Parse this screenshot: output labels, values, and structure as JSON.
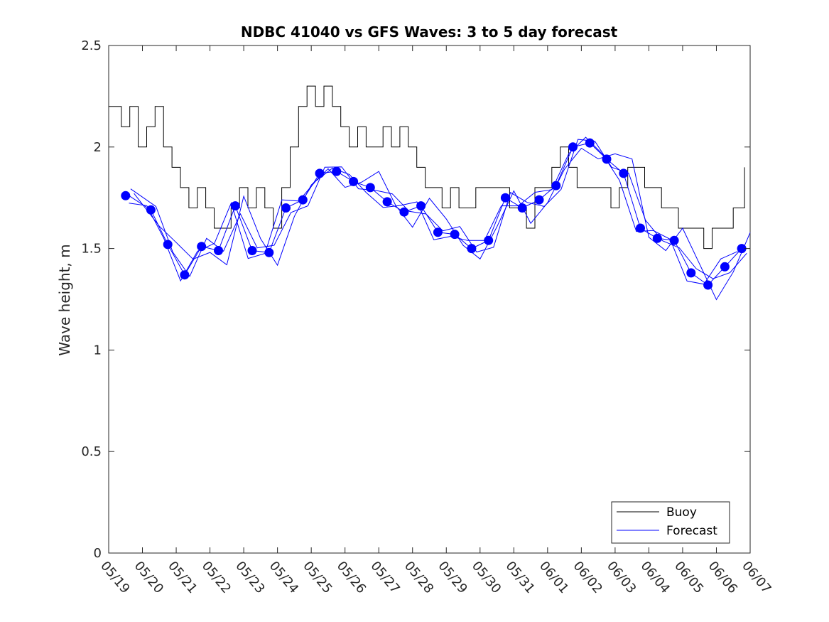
{
  "chart_data": {
    "type": "line",
    "title": "NDBC 41040 vs GFS Waves: 3 to 5 day forecast",
    "xlabel": "",
    "ylabel": "Wave height, m",
    "ylim": [
      0,
      2.5
    ],
    "yticks": [
      "0",
      "0.5",
      "1",
      "1.5",
      "2",
      "2.5"
    ],
    "xlim_days": [
      0,
      19
    ],
    "xticks": [
      "05/19",
      "05/20",
      "05/21",
      "05/22",
      "05/23",
      "05/24",
      "05/25",
      "05/26",
      "05/27",
      "05/28",
      "05/29",
      "05/30",
      "05/31",
      "06/01",
      "06/02",
      "06/03",
      "06/04",
      "06/05",
      "06/06",
      "06/07"
    ],
    "grid": false,
    "legend": {
      "position": "bottom-right",
      "entries": [
        "Buoy",
        "Forecast"
      ]
    },
    "colors": {
      "buoy": "#000000",
      "forecast": "#0000ff"
    },
    "series": [
      {
        "name": "Buoy",
        "points": [
          [
            "05/19",
            2.2
          ],
          [
            "05/19",
            2.1
          ],
          [
            "05/19",
            2.2
          ],
          [
            "05/19",
            2.0
          ],
          [
            "05/20",
            2.1
          ],
          [
            "05/20",
            2.2
          ],
          [
            "05/20",
            2.0
          ],
          [
            "05/20",
            1.9
          ],
          [
            "05/21",
            1.8
          ],
          [
            "05/21",
            1.7
          ],
          [
            "05/21",
            1.8
          ],
          [
            "05/21",
            1.7
          ],
          [
            "05/22",
            1.6
          ],
          [
            "05/22",
            1.6
          ],
          [
            "05/22",
            1.7
          ],
          [
            "05/22",
            1.8
          ],
          [
            "05/23",
            1.7
          ],
          [
            "05/23",
            1.8
          ],
          [
            "05/23",
            1.7
          ],
          [
            "05/23",
            1.6
          ],
          [
            "05/24",
            1.8
          ],
          [
            "05/24",
            2.0
          ],
          [
            "05/24",
            2.2
          ],
          [
            "05/24",
            2.3
          ],
          [
            "05/25",
            2.2
          ],
          [
            "05/25",
            2.3
          ],
          [
            "05/25",
            2.2
          ],
          [
            "05/25",
            2.1
          ],
          [
            "05/26",
            2.0
          ],
          [
            "05/26",
            2.1
          ],
          [
            "05/26",
            2.0
          ],
          [
            "05/26",
            2.0
          ],
          [
            "05/27",
            2.1
          ],
          [
            "05/27",
            2.0
          ],
          [
            "05/27",
            2.1
          ],
          [
            "05/27",
            2.0
          ],
          [
            "05/28",
            1.9
          ],
          [
            "05/28",
            1.8
          ],
          [
            "05/28",
            1.8
          ],
          [
            "05/28",
            1.7
          ],
          [
            "05/29",
            1.8
          ],
          [
            "05/29",
            1.7
          ],
          [
            "05/29",
            1.7
          ],
          [
            "05/29",
            1.8
          ],
          [
            "05/30",
            1.8
          ],
          [
            "05/30",
            1.8
          ],
          [
            "05/30",
            1.8
          ],
          [
            "05/30",
            1.7
          ],
          [
            "05/31",
            1.7
          ],
          [
            "05/31",
            1.6
          ],
          [
            "05/31",
            1.8
          ],
          [
            "05/31",
            1.8
          ],
          [
            "06/01",
            1.9
          ],
          [
            "06/01",
            2.0
          ],
          [
            "06/01",
            1.9
          ],
          [
            "06/01",
            1.8
          ],
          [
            "06/02",
            1.8
          ],
          [
            "06/02",
            1.8
          ],
          [
            "06/02",
            1.8
          ],
          [
            "06/02",
            1.7
          ],
          [
            "06/03",
            1.8
          ],
          [
            "06/03",
            1.9
          ],
          [
            "06/03",
            1.9
          ],
          [
            "06/03",
            1.8
          ],
          [
            "06/04",
            1.8
          ],
          [
            "06/04",
            1.7
          ],
          [
            "06/04",
            1.7
          ],
          [
            "06/04",
            1.6
          ],
          [
            "06/05",
            1.6
          ],
          [
            "06/05",
            1.6
          ],
          [
            "06/05",
            1.5
          ],
          [
            "06/05",
            1.6
          ],
          [
            "06/06",
            1.6
          ],
          [
            "06/06",
            1.7
          ],
          [
            "06/06",
            1.9
          ]
        ]
      },
      {
        "name": "Forecast",
        "markers": [
          [
            "05/19",
            1.76
          ],
          [
            "05/20",
            1.69
          ],
          [
            "05/20",
            1.52
          ],
          [
            "05/21",
            1.37
          ],
          [
            "05/21",
            1.51
          ],
          [
            "05/22",
            1.49
          ],
          [
            "05/22",
            1.71
          ],
          [
            "05/23",
            1.49
          ],
          [
            "05/23",
            1.48
          ],
          [
            "05/24",
            1.7
          ],
          [
            "05/24",
            1.74
          ],
          [
            "05/25",
            1.87
          ],
          [
            "05/25",
            1.88
          ],
          [
            "05/26",
            1.83
          ],
          [
            "05/26",
            1.8
          ],
          [
            "05/27",
            1.73
          ],
          [
            "05/27",
            1.68
          ],
          [
            "05/28",
            1.71
          ],
          [
            "05/28",
            1.58
          ],
          [
            "05/29",
            1.57
          ],
          [
            "05/29",
            1.5
          ],
          [
            "05/30",
            1.54
          ],
          [
            "05/30",
            1.75
          ],
          [
            "05/31",
            1.7
          ],
          [
            "05/31",
            1.74
          ],
          [
            "06/01",
            1.81
          ],
          [
            "06/01",
            2.0
          ],
          [
            "06/02",
            2.02
          ],
          [
            "06/02",
            1.94
          ],
          [
            "06/03",
            1.87
          ],
          [
            "06/03",
            1.6
          ],
          [
            "06/04",
            1.55
          ],
          [
            "06/04",
            1.54
          ],
          [
            "06/05",
            1.38
          ],
          [
            "06/05",
            1.32
          ],
          [
            "06/06",
            1.41
          ],
          [
            "06/06",
            1.5
          ]
        ]
      }
    ]
  }
}
